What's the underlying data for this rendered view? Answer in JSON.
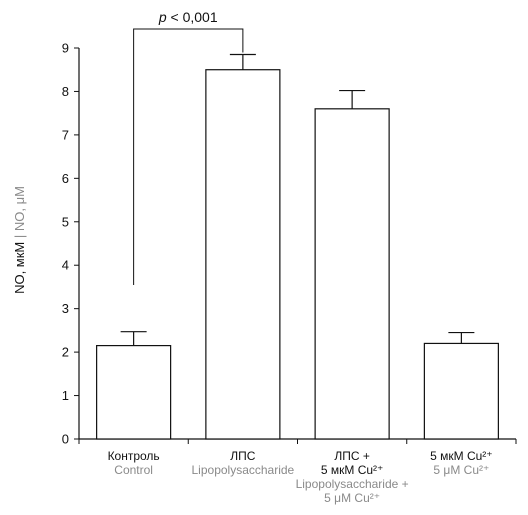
{
  "chart_data": {
    "type": "bar",
    "ylabel_ru": "NO, мкМ",
    "ylabel_sep": " | ",
    "ylabel_en": "NO, μM",
    "ylim": [
      0,
      9
    ],
    "yticks": [
      0,
      1,
      2,
      3,
      4,
      5,
      6,
      7,
      8,
      9
    ],
    "categories": [
      {
        "ru": [
          "Контроль"
        ],
        "en": [
          "Control"
        ]
      },
      {
        "ru": [
          "ЛПС"
        ],
        "en": [
          "Lipopolysaccharide"
        ]
      },
      {
        "ru": [
          "ЛПС +",
          "5 мкМ Cu²⁺"
        ],
        "en": [
          "Lipopolysaccharide +",
          "5 μM Cu²⁺"
        ]
      },
      {
        "ru": [
          "5 мкМ Cu²⁺"
        ],
        "en": [
          "5 μM Cu²⁺"
        ]
      }
    ],
    "values": [
      2.15,
      8.5,
      7.6,
      2.2
    ],
    "errors": [
      0.32,
      0.35,
      0.42,
      0.25
    ],
    "significance": {
      "label": "p < 0,001",
      "between": [
        0,
        1
      ]
    },
    "colors": {
      "bar_fill": "#ffffff",
      "bar_stroke": "#111111",
      "axis": "#111111",
      "secondary_text": "#8a8a8a"
    }
  }
}
